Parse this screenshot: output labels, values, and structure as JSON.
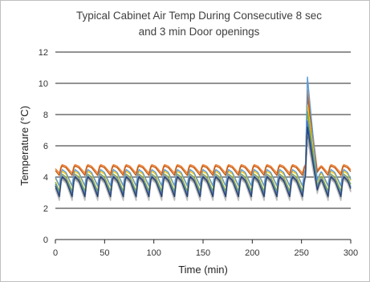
{
  "chart_data": {
    "type": "line",
    "title_lines": [
      "Typical Cabinet Air Temp During Consecutive 8 sec",
      "and 3 min Door openings"
    ],
    "xlabel": "Time (min)",
    "ylabel": "Temperature (°C)",
    "xlim": [
      0,
      300
    ],
    "ylim": [
      0,
      12
    ],
    "xticks": [
      0,
      50,
      100,
      150,
      200,
      250,
      300
    ],
    "yticks": [
      0,
      2,
      4,
      6,
      8,
      10,
      12
    ],
    "grid": "horizontal",
    "legend": "none",
    "cycle_period_min": 13,
    "trough_time_offset_min": 4,
    "spike_time_min": 256,
    "series": [
      {
        "color": "#ED7D31",
        "base": 4.7,
        "amp": 0.45,
        "peak": 9.6
      },
      {
        "color": "#C55A11",
        "base": 4.6,
        "amp": 0.5,
        "peak": 9.2
      },
      {
        "color": "#FFC000",
        "base": 4.2,
        "amp": 0.8,
        "peak": 8.6
      },
      {
        "color": "#70AD47",
        "base": 4.0,
        "amp": 0.9,
        "peak": 8.2
      },
      {
        "color": "#5B9BD5",
        "base": 4.3,
        "amp": 0.85,
        "peak": 10.4
      },
      {
        "color": "#4472C4",
        "base": 3.9,
        "amp": 1.0,
        "peak": 7.6
      },
      {
        "color": "#A5A5A5",
        "base": 3.9,
        "amp": 1.15,
        "peak": 6.9
      },
      {
        "color": "#7F7F7F",
        "base": 3.7,
        "amp": 1.15,
        "peak": 6.6
      },
      {
        "color": "#BFBFBF",
        "base": 3.6,
        "amp": 1.1,
        "peak": 6.4
      },
      {
        "color": "#264478",
        "base": 3.8,
        "amp": 1.05,
        "peak": 7.2
      }
    ]
  }
}
